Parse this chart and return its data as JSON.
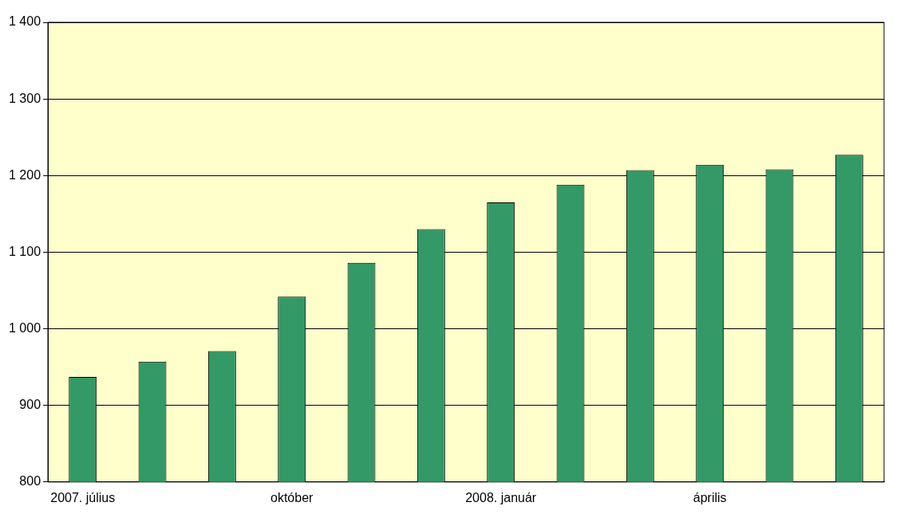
{
  "chart_data": {
    "type": "bar",
    "categories": [
      "2007. július",
      null,
      null,
      "október",
      null,
      null,
      "2008. január",
      null,
      null,
      "április",
      null,
      null
    ],
    "values": [
      937,
      957,
      971,
      1042,
      1086,
      1130,
      1165,
      1188,
      1207,
      1214,
      1208,
      1227
    ],
    "color": "#339966",
    "ylim": [
      800,
      1400
    ],
    "yticks": [
      800,
      900,
      {
        "value": 1000,
        "label": "1 000"
      },
      {
        "value": 1100,
        "label": "1 100"
      },
      {
        "value": 1200,
        "label": "1 200"
      },
      {
        "value": 1300,
        "label": "1 300"
      },
      {
        "value": 1400,
        "label": "1 400"
      }
    ],
    "grid": "y"
  }
}
